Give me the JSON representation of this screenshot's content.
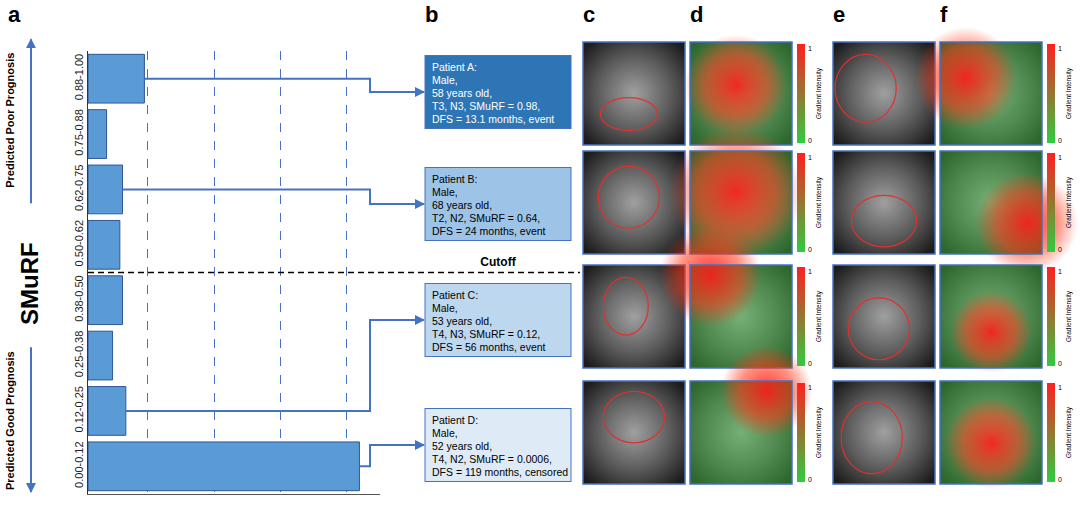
{
  "panel_labels": [
    "a",
    "b",
    "c",
    "d",
    "e",
    "f"
  ],
  "chart_data": {
    "type": "bar",
    "orientation": "horizontal",
    "y_label": "SMuRF",
    "categories": [
      "0.88-1.00",
      "0.75-0.88",
      "0.62-0.75",
      "0.50-0.62",
      "0.38-0.50",
      "0.25-0.38",
      "0.12-0.25",
      "0.00-0.12"
    ],
    "values": [
      8.5,
      2.8,
      5.2,
      4.8,
      5.2,
      3.7,
      5.7,
      40.9
    ],
    "color": "#5b9bd5",
    "xlim": [
      0,
      44
    ],
    "xticks": [
      9,
      19,
      29,
      39
    ],
    "grid": true,
    "tick_labels": "y"
  },
  "prognosis_labels": {
    "poor": "Predicted Poor Prognosis",
    "good": "Predicted Good Prognosis"
  },
  "cutoff": {
    "label": "Cutoff",
    "between": [
      "0.50-0.62",
      "0.38-0.50"
    ]
  },
  "patients": [
    {
      "name": "Patient A:",
      "lines": [
        "Male,",
        "58 years old,",
        "T3, N3, SMuRF = 0.98,",
        "DFS = 13.1 months, event"
      ],
      "bin": "0.88-1.00",
      "color": "#2e75b6"
    },
    {
      "name": "Patient B:",
      "lines": [
        "Male,",
        "68 years old,",
        "T2, N2, SMuRF = 0.64,",
        "DFS = 24 months, event"
      ],
      "bin": "0.62-0.75",
      "color": "#9dc3e6"
    },
    {
      "name": "Patient C:",
      "lines": [
        "Male,",
        "53 years old,",
        "T4, N3, SMuRF = 0.12,",
        "DFS = 56 months, event"
      ],
      "bin": "0.12-0.25",
      "color": "#bdd7ee"
    },
    {
      "name": "Patient D:",
      "lines": [
        "Male,",
        "52 years old,",
        "T4, N2, SMuRF = 0.0006,",
        "DFS = 119 months, censored"
      ],
      "bin": "0.00-0.12",
      "color": "#deebf7"
    }
  ],
  "colorbar": {
    "title": "Gradient Intensity",
    "range": [
      0,
      1
    ],
    "ticks": [
      0,
      1
    ],
    "colors": [
      "#2ecc40",
      "#ff2020"
    ]
  }
}
